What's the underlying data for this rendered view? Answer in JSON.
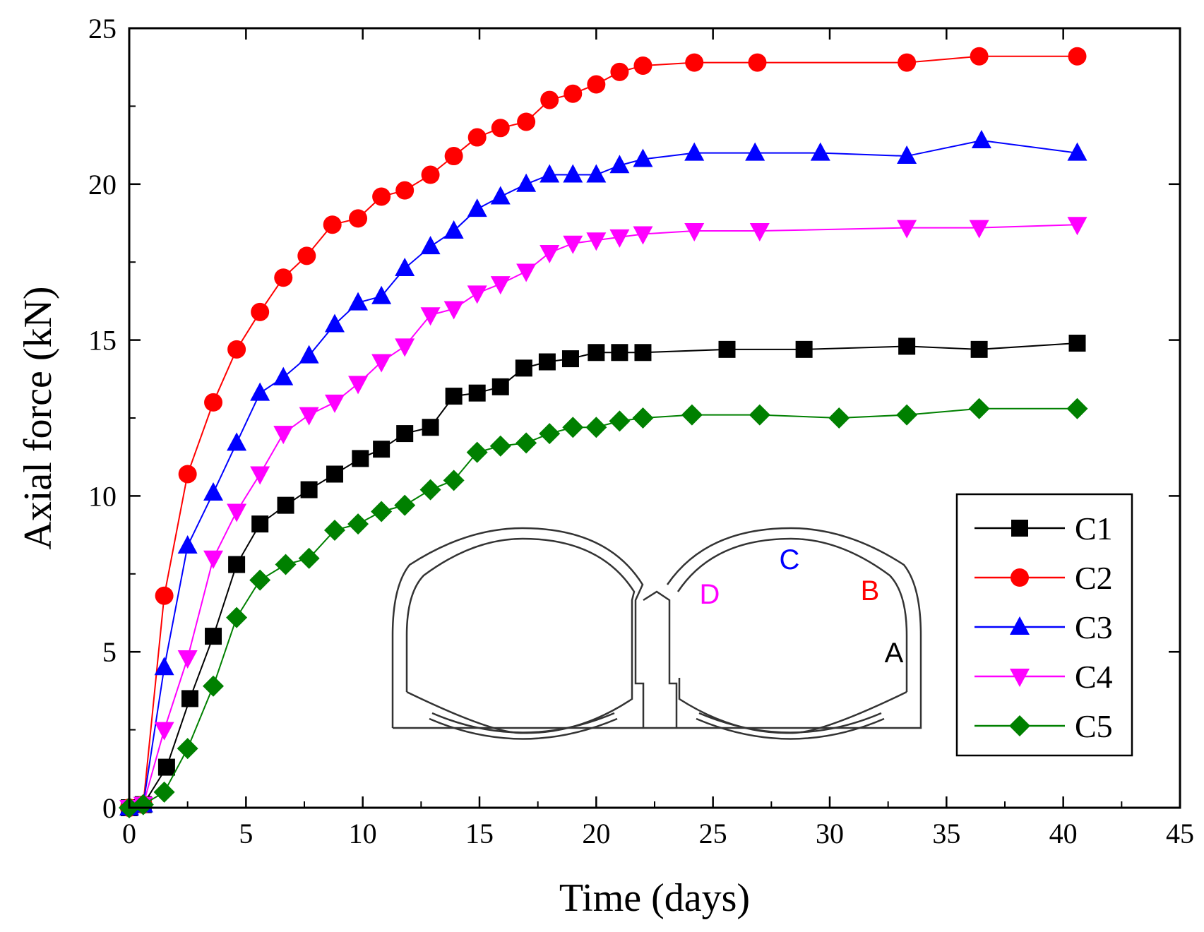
{
  "chart_data": {
    "type": "line",
    "xlabel": "Time (days)",
    "ylabel": "Axial force (kN)",
    "xlim": [
      0,
      45
    ],
    "ylim": [
      0,
      25
    ],
    "x_ticks": [
      0,
      5,
      10,
      15,
      20,
      25,
      30,
      35,
      40,
      45
    ],
    "y_ticks": [
      0,
      5,
      10,
      15,
      20,
      25
    ],
    "grid": false,
    "legend_position": "bottom-right",
    "series": [
      {
        "name": "C1",
        "color": "#000000",
        "marker": "square",
        "points": [
          [
            0,
            0
          ],
          [
            0.6,
            0.1
          ],
          [
            1.6,
            1.3
          ],
          [
            2.6,
            3.5
          ],
          [
            3.6,
            5.5
          ],
          [
            4.6,
            7.8
          ],
          [
            5.6,
            9.1
          ],
          [
            6.7,
            9.7
          ],
          [
            7.7,
            10.2
          ],
          [
            8.8,
            10.7
          ],
          [
            9.9,
            11.2
          ],
          [
            10.8,
            11.5
          ],
          [
            11.8,
            12.0
          ],
          [
            12.9,
            12.2
          ],
          [
            13.9,
            13.2
          ],
          [
            14.9,
            13.3
          ],
          [
            15.9,
            13.5
          ],
          [
            16.9,
            14.1
          ],
          [
            17.9,
            14.3
          ],
          [
            18.9,
            14.4
          ],
          [
            20.0,
            14.6
          ],
          [
            21.0,
            14.6
          ],
          [
            22.0,
            14.6
          ],
          [
            25.6,
            14.7
          ],
          [
            28.9,
            14.7
          ],
          [
            33.3,
            14.8
          ],
          [
            36.4,
            14.7
          ],
          [
            40.6,
            14.9
          ]
        ]
      },
      {
        "name": "C2",
        "color": "#ff0000",
        "marker": "circle",
        "points": [
          [
            0,
            0
          ],
          [
            0.6,
            0.1
          ],
          [
            1.5,
            6.8
          ],
          [
            2.5,
            10.7
          ],
          [
            3.6,
            13.0
          ],
          [
            4.6,
            14.7
          ],
          [
            5.6,
            15.9
          ],
          [
            6.6,
            17.0
          ],
          [
            7.6,
            17.7
          ],
          [
            8.7,
            18.7
          ],
          [
            9.8,
            18.9
          ],
          [
            10.8,
            19.6
          ],
          [
            11.8,
            19.8
          ],
          [
            12.9,
            20.3
          ],
          [
            13.9,
            20.9
          ],
          [
            14.9,
            21.5
          ],
          [
            15.9,
            21.8
          ],
          [
            17.0,
            22.0
          ],
          [
            18.0,
            22.7
          ],
          [
            19.0,
            22.9
          ],
          [
            20.0,
            23.2
          ],
          [
            21.0,
            23.6
          ],
          [
            22.0,
            23.8
          ],
          [
            24.2,
            23.9
          ],
          [
            26.9,
            23.9
          ],
          [
            33.3,
            23.9
          ],
          [
            36.4,
            24.1
          ],
          [
            40.6,
            24.1
          ]
        ]
      },
      {
        "name": "C3",
        "color": "#0000ff",
        "marker": "triangle-up",
        "points": [
          [
            0,
            0
          ],
          [
            0.6,
            0.1
          ],
          [
            1.5,
            4.5
          ],
          [
            2.5,
            8.4
          ],
          [
            3.6,
            10.1
          ],
          [
            4.6,
            11.7
          ],
          [
            5.6,
            13.3
          ],
          [
            6.6,
            13.8
          ],
          [
            7.7,
            14.5
          ],
          [
            8.8,
            15.5
          ],
          [
            9.8,
            16.2
          ],
          [
            10.8,
            16.4
          ],
          [
            11.8,
            17.3
          ],
          [
            12.9,
            18.0
          ],
          [
            13.9,
            18.5
          ],
          [
            14.9,
            19.2
          ],
          [
            15.9,
            19.6
          ],
          [
            17.0,
            20.0
          ],
          [
            18.0,
            20.3
          ],
          [
            19.0,
            20.3
          ],
          [
            20.0,
            20.3
          ],
          [
            21.0,
            20.6
          ],
          [
            22.0,
            20.8
          ],
          [
            24.2,
            21.0
          ],
          [
            26.8,
            21.0
          ],
          [
            29.6,
            21.0
          ],
          [
            33.3,
            20.9
          ],
          [
            36.5,
            21.4
          ],
          [
            40.6,
            21.0
          ]
        ]
      },
      {
        "name": "C4",
        "color": "#ff00ff",
        "marker": "triangle-down",
        "points": [
          [
            0,
            0
          ],
          [
            0.6,
            0.1
          ],
          [
            1.5,
            2.5
          ],
          [
            2.5,
            4.8
          ],
          [
            3.6,
            8.0
          ],
          [
            4.6,
            9.5
          ],
          [
            5.6,
            10.7
          ],
          [
            6.6,
            12.0
          ],
          [
            7.7,
            12.6
          ],
          [
            8.8,
            13.0
          ],
          [
            9.8,
            13.6
          ],
          [
            10.8,
            14.3
          ],
          [
            11.8,
            14.8
          ],
          [
            12.9,
            15.8
          ],
          [
            13.9,
            16.0
          ],
          [
            14.9,
            16.5
          ],
          [
            15.9,
            16.8
          ],
          [
            17.0,
            17.2
          ],
          [
            18.0,
            17.8
          ],
          [
            19.0,
            18.1
          ],
          [
            20.0,
            18.2
          ],
          [
            21.0,
            18.3
          ],
          [
            22.0,
            18.4
          ],
          [
            24.2,
            18.5
          ],
          [
            27.0,
            18.5
          ],
          [
            33.3,
            18.6
          ],
          [
            36.4,
            18.6
          ],
          [
            40.6,
            18.7
          ]
        ]
      },
      {
        "name": "C5",
        "color": "#008000",
        "marker": "diamond",
        "points": [
          [
            0,
            0
          ],
          [
            0.6,
            0.1
          ],
          [
            1.5,
            0.5
          ],
          [
            2.5,
            1.9
          ],
          [
            3.6,
            3.9
          ],
          [
            4.6,
            6.1
          ],
          [
            5.6,
            7.3
          ],
          [
            6.7,
            7.8
          ],
          [
            7.7,
            8.0
          ],
          [
            8.8,
            8.9
          ],
          [
            9.8,
            9.1
          ],
          [
            10.8,
            9.5
          ],
          [
            11.8,
            9.7
          ],
          [
            12.9,
            10.2
          ],
          [
            13.9,
            10.5
          ],
          [
            14.9,
            11.4
          ],
          [
            15.9,
            11.6
          ],
          [
            17.0,
            11.7
          ],
          [
            18.0,
            12.0
          ],
          [
            19.0,
            12.2
          ],
          [
            20.0,
            12.2
          ],
          [
            21.0,
            12.4
          ],
          [
            22.0,
            12.5
          ],
          [
            24.1,
            12.6
          ],
          [
            27.0,
            12.6
          ],
          [
            30.4,
            12.5
          ],
          [
            33.3,
            12.6
          ],
          [
            36.4,
            12.8
          ],
          [
            40.6,
            12.8
          ]
        ]
      }
    ],
    "annotations": [
      {
        "text": "A",
        "color": "#000000"
      },
      {
        "text": "B",
        "color": "#ff0000"
      },
      {
        "text": "C",
        "color": "#0000ff"
      },
      {
        "text": "D",
        "color": "#ff00ff"
      }
    ]
  }
}
